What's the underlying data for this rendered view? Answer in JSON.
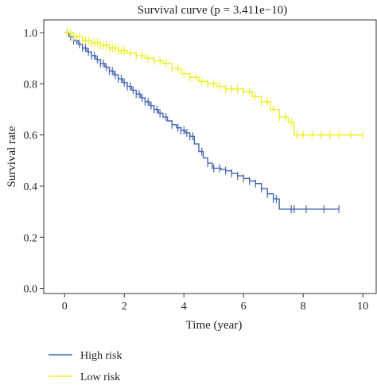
{
  "chart_data": {
    "type": "line",
    "subtype": "kaplan-meier",
    "title": "Survival curve (p = 3.411e−10)",
    "xlabel": "Time (year)",
    "ylabel": "Survival rate",
    "xlim": [
      -0.7,
      10.45
    ],
    "ylim": [
      -0.02,
      1.05
    ],
    "x_ticks": [
      0,
      2,
      4,
      6,
      8,
      10
    ],
    "x_tick_labels": [
      "0",
      "2",
      "4",
      "6",
      "8",
      "10"
    ],
    "y_ticks": [
      0.0,
      0.2,
      0.4,
      0.6,
      0.8,
      1.0
    ],
    "y_tick_labels": [
      "0.0",
      "0.2",
      "0.4",
      "0.6",
      "0.8",
      "1.0"
    ],
    "grid": false,
    "legend_position": "bottom-left",
    "series": [
      {
        "name": "High risk",
        "color": "#4566b0",
        "points": [
          [
            0.0,
            1.0
          ],
          [
            0.15,
            0.985
          ],
          [
            0.3,
            0.97
          ],
          [
            0.45,
            0.955
          ],
          [
            0.6,
            0.94
          ],
          [
            0.75,
            0.925
          ],
          [
            0.9,
            0.91
          ],
          [
            1.05,
            0.895
          ],
          [
            1.2,
            0.88
          ],
          [
            1.35,
            0.865
          ],
          [
            1.5,
            0.85
          ],
          [
            1.65,
            0.835
          ],
          [
            1.8,
            0.82
          ],
          [
            1.95,
            0.805
          ],
          [
            2.1,
            0.79
          ],
          [
            2.25,
            0.775
          ],
          [
            2.4,
            0.76
          ],
          [
            2.55,
            0.745
          ],
          [
            2.7,
            0.73
          ],
          [
            2.85,
            0.715
          ],
          [
            3.0,
            0.7
          ],
          [
            3.15,
            0.685
          ],
          [
            3.3,
            0.67
          ],
          [
            3.45,
            0.655
          ],
          [
            3.6,
            0.64
          ],
          [
            3.75,
            0.628
          ],
          [
            3.9,
            0.618
          ],
          [
            4.05,
            0.608
          ],
          [
            4.2,
            0.595
          ],
          [
            4.35,
            0.565
          ],
          [
            4.5,
            0.535
          ],
          [
            4.65,
            0.51
          ],
          [
            4.8,
            0.49
          ],
          [
            4.95,
            0.47
          ],
          [
            5.1,
            0.47
          ],
          [
            5.25,
            0.465
          ],
          [
            5.4,
            0.46
          ],
          [
            5.6,
            0.45
          ],
          [
            5.8,
            0.44
          ],
          [
            6.0,
            0.43
          ],
          [
            6.2,
            0.42
          ],
          [
            6.4,
            0.41
          ],
          [
            6.6,
            0.39
          ],
          [
            6.8,
            0.37
          ],
          [
            7.0,
            0.35
          ],
          [
            7.2,
            0.31
          ],
          [
            7.6,
            0.31
          ],
          [
            8.0,
            0.31
          ],
          [
            8.5,
            0.31
          ],
          [
            9.2,
            0.31
          ]
        ],
        "censor_x": [
          0.1,
          0.2,
          0.3,
          0.4,
          0.5,
          0.6,
          0.7,
          0.8,
          0.9,
          1.0,
          1.1,
          1.2,
          1.3,
          1.4,
          1.5,
          1.6,
          1.7,
          1.8,
          1.9,
          2.0,
          2.1,
          2.2,
          2.3,
          2.4,
          2.5,
          2.6,
          2.7,
          2.8,
          2.9,
          3.0,
          3.1,
          3.2,
          3.4,
          3.6,
          3.8,
          3.9,
          4.0,
          4.1,
          4.2,
          4.3,
          4.6,
          4.8,
          5.0,
          5.2,
          5.4,
          5.6,
          5.8,
          6.0,
          6.2,
          6.4,
          6.6,
          6.8,
          7.0,
          7.1,
          7.6,
          7.7,
          8.1,
          8.7,
          9.2
        ]
      },
      {
        "name": "Low risk",
        "color": "#eeee22",
        "points": [
          [
            0.0,
            1.0
          ],
          [
            0.3,
            0.985
          ],
          [
            0.6,
            0.97
          ],
          [
            0.9,
            0.96
          ],
          [
            1.2,
            0.95
          ],
          [
            1.5,
            0.94
          ],
          [
            1.8,
            0.93
          ],
          [
            2.1,
            0.92
          ],
          [
            2.4,
            0.91
          ],
          [
            2.7,
            0.9
          ],
          [
            3.0,
            0.89
          ],
          [
            3.3,
            0.88
          ],
          [
            3.6,
            0.86
          ],
          [
            3.9,
            0.84
          ],
          [
            4.2,
            0.825
          ],
          [
            4.5,
            0.81
          ],
          [
            4.8,
            0.8
          ],
          [
            5.1,
            0.79
          ],
          [
            5.4,
            0.78
          ],
          [
            5.7,
            0.78
          ],
          [
            6.0,
            0.77
          ],
          [
            6.3,
            0.75
          ],
          [
            6.6,
            0.73
          ],
          [
            6.9,
            0.7
          ],
          [
            7.2,
            0.67
          ],
          [
            7.5,
            0.65
          ],
          [
            7.7,
            0.6
          ],
          [
            8.0,
            0.6
          ],
          [
            8.5,
            0.6
          ],
          [
            9.0,
            0.6
          ],
          [
            10.0,
            0.6
          ]
        ],
        "censor_x": [
          0.1,
          0.2,
          0.3,
          0.4,
          0.5,
          0.6,
          0.7,
          0.8,
          0.9,
          1.0,
          1.1,
          1.2,
          1.3,
          1.4,
          1.5,
          1.6,
          1.7,
          1.8,
          1.9,
          2.0,
          2.2,
          2.4,
          2.6,
          2.8,
          3.0,
          3.2,
          3.4,
          3.6,
          3.8,
          4.0,
          4.2,
          4.4,
          4.6,
          4.8,
          5.0,
          5.2,
          5.4,
          5.6,
          5.8,
          6.0,
          6.2,
          6.4,
          6.6,
          6.8,
          7.0,
          7.2,
          7.4,
          7.6,
          7.8,
          8.0,
          8.3,
          8.6,
          8.9,
          9.2,
          9.6,
          10.0
        ]
      }
    ]
  },
  "legend": {
    "items": [
      {
        "label": "High risk",
        "color": "#4566b0"
      },
      {
        "label": "Low risk",
        "color": "#eeee22"
      }
    ]
  }
}
